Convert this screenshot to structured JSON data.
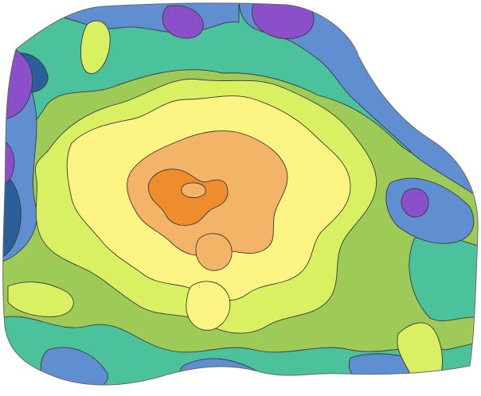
{
  "map": {
    "legend_visible": false,
    "classes": [
      {
        "level": 1,
        "color": "#8a4fc9"
      },
      {
        "level": 2,
        "color": "#2a5f9a"
      },
      {
        "level": 3,
        "color": "#5f8fd0"
      },
      {
        "level": 4,
        "color": "#4cc29c"
      },
      {
        "level": 5,
        "color": "#9ecb58"
      },
      {
        "level": 6,
        "color": "#d9f063"
      },
      {
        "level": 7,
        "color": "#fbf482"
      },
      {
        "level": 8,
        "color": "#f4b468"
      },
      {
        "level": 9,
        "color": "#ef8c2e"
      }
    ]
  }
}
